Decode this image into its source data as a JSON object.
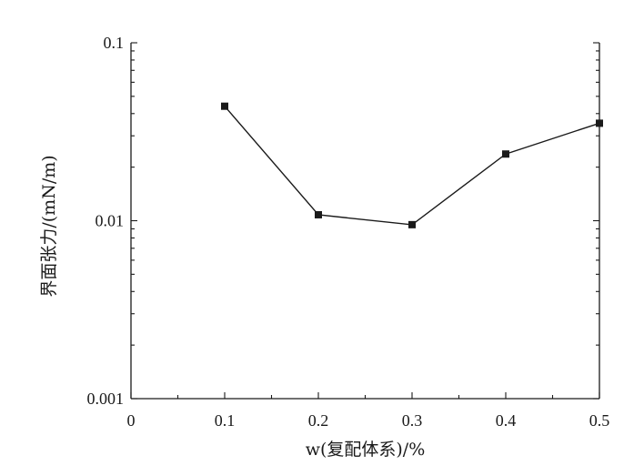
{
  "chart_data": {
    "type": "line",
    "title": "",
    "xlabel": "w(复配体系)/%",
    "ylabel": "界面张力/(mN/m)",
    "x_scale": "linear",
    "y_scale": "log",
    "xlim": [
      0,
      0.5
    ],
    "ylim": [
      0.001,
      0.1
    ],
    "x_ticks": [
      0,
      0.1,
      0.2,
      0.3,
      0.4,
      0.5
    ],
    "x_tick_labels": [
      "0",
      "0.1",
      "0.2",
      "0.3",
      "0.4",
      "0.5"
    ],
    "y_ticks": [
      0.001,
      0.01,
      0.1
    ],
    "y_tick_labels": [
      "0.001",
      "0.01",
      "0.1"
    ],
    "grid": false,
    "legend": "none",
    "series": [
      {
        "marker": "square",
        "color": "#1a1a1a",
        "x": [
          0.1,
          0.2,
          0.3,
          0.4,
          0.5
        ],
        "y": [
          0.044,
          0.0108,
          0.0095,
          0.0237,
          0.0353
        ]
      }
    ]
  }
}
